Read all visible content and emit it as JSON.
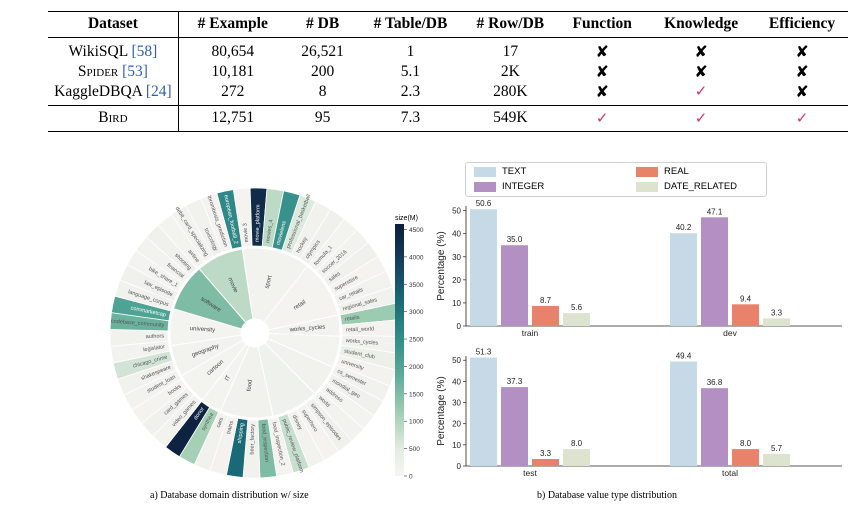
{
  "table": {
    "headers": [
      "Dataset",
      "# Example",
      "# DB",
      "# Table/DB",
      "# Row/DB",
      "Function",
      "Knowledge",
      "Efficiency"
    ],
    "rows": [
      {
        "name": "WikiSQL",
        "ref": "[58]",
        "example": "80,654",
        "db": "26,521",
        "table_db": "1",
        "row_db": "17",
        "function": "no",
        "knowledge": "no",
        "efficiency": "no"
      },
      {
        "name": "Spider",
        "ref": "[53]",
        "example": "10,181",
        "db": "200",
        "table_db": "5.1",
        "row_db": "2K",
        "function": "no",
        "knowledge": "no",
        "efficiency": "no"
      },
      {
        "name": "KaggleDBQA",
        "ref": "[24]",
        "example": "272",
        "db": "8",
        "table_db": "2.3",
        "row_db": "280K",
        "function": "no",
        "knowledge": "yes",
        "efficiency": "no"
      }
    ],
    "bird": {
      "name": "Bird",
      "example": "12,751",
      "db": "95",
      "table_db": "7.3",
      "row_db": "549K",
      "function": "yes",
      "knowledge": "yes",
      "efficiency": "yes"
    },
    "symbols": {
      "yes": "✓",
      "no": "✘"
    }
  },
  "sunburst": {
    "caption": "a) Database domain distribution w/ size",
    "colorbar_title": "size(M)",
    "colorbar_ticks": [
      "4500",
      "4000",
      "3500",
      "3000",
      "2500",
      "2000",
      "1500",
      "1000",
      "500",
      "0"
    ],
    "colorbar_range": [
      0,
      4600
    ],
    "inner": [
      {
        "name": "sport",
        "size": 120
      },
      {
        "name": "retail",
        "size": 80
      },
      {
        "name": "works_cycles",
        "size": 120
      },
      {
        "name": "",
        "size": 100
      },
      {
        "name": "",
        "size": 150
      },
      {
        "name": "",
        "size": 200
      },
      {
        "name": "food",
        "size": 150
      },
      {
        "name": "IT",
        "size": 100
      },
      {
        "name": "cartoon",
        "size": 100
      },
      {
        "name": "geography",
        "size": 120
      },
      {
        "name": "university",
        "size": 100
      },
      {
        "name": "software",
        "size": 1500
      },
      {
        "name": "movie",
        "size": 900
      }
    ],
    "outer_labels": [
      "movie 3",
      "movie_platform",
      "movies_4",
      "movielens",
      "professional_basketball",
      "hockey",
      "olympics",
      "formula_1",
      "soccer_2016",
      "sales",
      "superstore",
      "car_retails",
      "regional_sales",
      "retails",
      "retail_world",
      "works_cycles",
      "student_club",
      "university",
      "cs_semester",
      "mondial_geo",
      "address",
      "world",
      "simpson_episodes",
      "superhero",
      "disney",
      "public_review_platform",
      "food_inspection_2",
      "food_inspection",
      "beer_factory",
      "shipping",
      "trains",
      "cars",
      "synthea",
      "donor",
      "video_games",
      "card_games",
      "books",
      "student_loan",
      "shakespeare",
      "chicago_crime",
      "legislator",
      "authors",
      "codebase_community",
      "coinmarketcap",
      "language_corpus",
      "law_episode",
      "bike_share_1",
      "financial",
      "shooting",
      "airline",
      "debit_card_specializing",
      "toxicology",
      "thrombosis_prediction",
      "european_football_2"
    ]
  },
  "bars": {
    "caption": "b) Database value type distribution",
    "ylabel": "Percentage (%)",
    "legend": [
      {
        "name": "TEXT",
        "color": "#c6d9e6"
      },
      {
        "name": "REAL",
        "color": "#e8826a"
      },
      {
        "name": "INTEGER",
        "color": "#b38fc4"
      },
      {
        "name": "DATE_RELATED",
        "color": "#dde3cf"
      }
    ],
    "subplots": [
      {
        "groups": [
          "train",
          "dev"
        ],
        "values": [
          [
            50.6,
            35.0,
            8.7,
            5.6
          ],
          [
            40.2,
            47.1,
            9.4,
            3.3
          ]
        ]
      },
      {
        "groups": [
          "test",
          "total"
        ],
        "values": [
          [
            51.3,
            37.3,
            3.3,
            8.0
          ],
          [
            49.4,
            36.8,
            8.0,
            5.7
          ]
        ]
      }
    ],
    "yticks": [
      "0",
      "10",
      "20",
      "30",
      "40",
      "50"
    ],
    "ylim": [
      0,
      52
    ]
  },
  "chart_data": {
    "type": "bar",
    "categories": [
      "train",
      "dev",
      "test",
      "total"
    ],
    "series": [
      {
        "name": "TEXT",
        "values": [
          50.6,
          40.2,
          51.3,
          49.4
        ]
      },
      {
        "name": "INTEGER",
        "values": [
          35.0,
          47.1,
          37.3,
          36.8
        ]
      },
      {
        "name": "REAL",
        "values": [
          8.7,
          9.4,
          3.3,
          8.0
        ]
      },
      {
        "name": "DATE_RELATED",
        "values": [
          5.6,
          3.3,
          8.0,
          5.7
        ]
      }
    ],
    "ylabel": "Percentage (%)",
    "ylim": [
      0,
      52
    ],
    "title": "b) Database value type distribution"
  }
}
